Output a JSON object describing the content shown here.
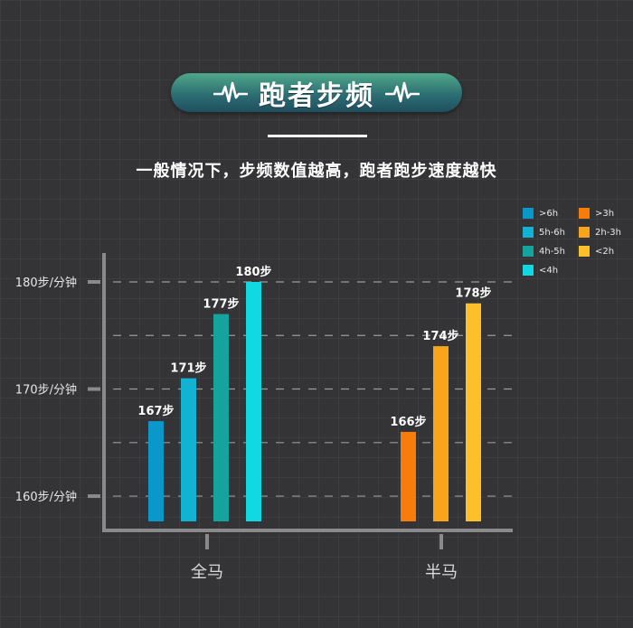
{
  "header": {
    "title": "跑者步频",
    "subtitle": "一般情况下，步频数值越高，跑者跑步速度越快"
  },
  "colors": {
    "background": "#343436",
    "axis": "#8a8a8a",
    "gridline": "#9a9a9a",
    "text": "#ffffff"
  },
  "chart_data": {
    "type": "bar",
    "categories": [
      "全马",
      "半马"
    ],
    "y_ticks": [
      {
        "value": 160,
        "label": "160步/分钟"
      },
      {
        "value": 170,
        "label": "170步/分钟"
      },
      {
        "value": 180,
        "label": "180步/分钟"
      }
    ],
    "gridlines": [
      160,
      165,
      170,
      175,
      180
    ],
    "ylim": [
      156.8,
      182.7
    ],
    "groups": [
      {
        "category": "全马",
        "bars": [
          {
            "series": ">6h",
            "value": 167,
            "label": "167步",
            "color": "#0a97c9"
          },
          {
            "series": "5h-6h",
            "value": 171,
            "label": "171步",
            "color": "#12b3d2"
          },
          {
            "series": "4h-5h",
            "value": 177,
            "label": "177步",
            "color": "#15a39d"
          },
          {
            "series": "<4h",
            "value": 180,
            "label": "180步",
            "color": "#11d9e1"
          }
        ]
      },
      {
        "category": "半马",
        "bars": [
          {
            "series": ">3h",
            "value": 166,
            "label": "166步",
            "color": "#f77c0a"
          },
          {
            "series": "2h-3h",
            "value": 174,
            "label": "174步",
            "color": "#f9a51b"
          },
          {
            "series": "<2h",
            "value": 178,
            "label": "178步",
            "color": "#fcc02b"
          }
        ]
      }
    ],
    "legend": {
      "placement": "top-right",
      "items": [
        {
          "label": ">6h",
          "color": "#0a97c9"
        },
        {
          "label": ">3h",
          "color": "#f77c0a"
        },
        {
          "label": "5h-6h",
          "color": "#12b3d2"
        },
        {
          "label": "2h-3h",
          "color": "#f9a51b"
        },
        {
          "label": "4h-5h",
          "color": "#15a39d"
        },
        {
          "label": "<2h",
          "color": "#fcc02b"
        },
        {
          "label": "<4h",
          "color": "#11d9e1"
        }
      ]
    }
  }
}
